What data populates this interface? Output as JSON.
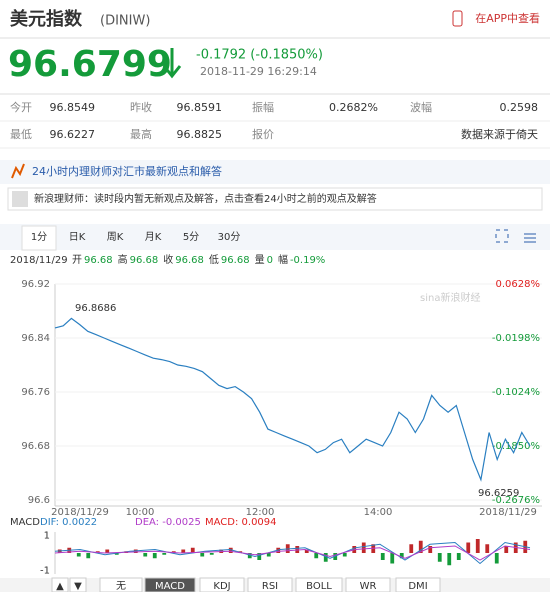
{
  "header": {
    "title": "美元指数",
    "code": "(DINIW)",
    "app_link": "在APP中查看"
  },
  "quote": {
    "price": "96.6799",
    "change": "-0.1792 (-0.1850%)",
    "time": "2018-11-29 16:29:14"
  },
  "stats": {
    "rows": [
      [
        [
          "今开",
          "96.8549"
        ],
        [
          "昨收",
          "96.8591"
        ],
        [
          "振幅",
          "0.2682%"
        ],
        [
          "波幅",
          "0.2598"
        ]
      ],
      [
        [
          "最低",
          "96.6227"
        ],
        [
          "最高",
          "96.8825"
        ],
        [
          "报价",
          "数据来源于倚天"
        ]
      ]
    ]
  },
  "advisor": {
    "title": "24小时内理财师对汇市最新观点和解答",
    "message": "新浪理财师：读时段内暂无新观点及解答，点击查看24小时之前的观点及解答"
  },
  "tabs": {
    "items": [
      "1分",
      "日K",
      "周K",
      "月K",
      "5分",
      "30分"
    ],
    "selected": 0
  },
  "info": {
    "date": "2018/11/29",
    "items": [
      [
        "开",
        "96.68"
      ],
      [
        "高",
        "96.68"
      ],
      [
        "收",
        "96.68"
      ],
      [
        "低",
        "96.68"
      ],
      [
        "量",
        "0"
      ],
      [
        "幅",
        "-0.19%"
      ]
    ]
  },
  "chart": {
    "type": "line",
    "color": "#2a7fc1",
    "ylim": [
      96.6,
      96.92
    ],
    "yticks": [
      96.92,
      96.84,
      96.76,
      96.68,
      {
        "value": 96.6,
        "label": "96.6"
      }
    ],
    "right_labels": [
      "0.0628%",
      "-0.0198%",
      "-0.1024%",
      "-0.1850%",
      "-0.2676%"
    ],
    "x_labels": [
      "2018/11/29",
      "10:00",
      "12:00",
      "14:00",
      "2018/11/29"
    ],
    "watermark": "sina新浪财经",
    "high_label": "96.8686",
    "low_label": "96.6259",
    "values": [
      96.855,
      96.858,
      96.869,
      96.86,
      96.85,
      96.845,
      96.84,
      96.835,
      96.83,
      96.825,
      96.82,
      96.815,
      96.81,
      96.808,
      96.805,
      96.8,
      96.798,
      96.795,
      96.79,
      96.78,
      96.77,
      96.765,
      96.768,
      96.76,
      96.75,
      96.73,
      96.705,
      96.7,
      96.695,
      96.69,
      96.685,
      96.68,
      96.67,
      96.675,
      96.685,
      96.69,
      96.67,
      96.68,
      96.69,
      96.685,
      96.68,
      96.7,
      96.73,
      96.72,
      96.7,
      96.72,
      96.755,
      96.74,
      96.73,
      96.74,
      96.7,
      96.66,
      96.63,
      96.7,
      96.66,
      96.69,
      96.67,
      96.7,
      96.68
    ]
  },
  "macd": {
    "legend": [
      "MACD",
      "DIF: 0.0022",
      "DEA: -0.0025",
      "MACD: 0.0094"
    ],
    "ylim": [
      -1.2,
      1.2
    ],
    "yticks": [
      1,
      -1
    ],
    "hist": [
      0.2,
      0.3,
      -0.2,
      -0.3,
      0.1,
      0.2,
      -0.1,
      0.1,
      0.2,
      -0.2,
      -0.3,
      -0.1,
      0.1,
      0.2,
      0.3,
      -0.2,
      -0.1,
      0.2,
      0.3,
      0.1,
      -0.3,
      -0.4,
      -0.2,
      0.3,
      0.5,
      0.4,
      0.2,
      -0.3,
      -0.5,
      -0.4,
      -0.2,
      0.4,
      0.6,
      0.5,
      -0.4,
      -0.6,
      -0.3,
      0.5,
      0.7,
      0.4,
      -0.5,
      -0.7,
      -0.4,
      0.6,
      0.8,
      0.5,
      -0.6,
      0.4,
      0.6,
      0.7
    ],
    "dif": [
      0.1,
      0.2,
      -0.1,
      0.1,
      0.2,
      -0.1,
      0.1,
      0.2,
      -0.2,
      0.2,
      0.3,
      -0.3,
      0.3,
      0.5,
      -0.4,
      0.5,
      0.6,
      -0.6,
      0.6,
      0.3
    ],
    "dea": [
      0,
      0.1,
      0,
      0.05,
      0.1,
      0,
      0.05,
      0.1,
      -0.1,
      0.1,
      0.2,
      -0.2,
      0.2,
      0.3,
      -0.3,
      0.3,
      0.4,
      -0.4,
      0.4,
      0.2
    ]
  },
  "bottom_tabs": {
    "items": [
      "▲",
      "▼",
      "无",
      "MACD",
      "KDJ",
      "RSI",
      "BOLL",
      "WR",
      "DMI"
    ],
    "selected": 3
  }
}
